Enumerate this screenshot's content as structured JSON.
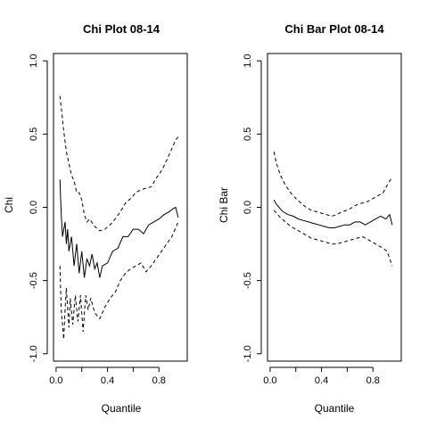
{
  "chart_data": [
    {
      "type": "line",
      "title": "Chi Plot 08-14",
      "xlabel": "Quantile",
      "ylabel": "Chi",
      "xlim": [
        -0.02,
        1.02
      ],
      "ylim": [
        -1.05,
        1.05
      ],
      "xticks": [
        0.0,
        0.2,
        0.4,
        0.6,
        0.8
      ],
      "xtick_labels": [
        "0.0",
        "",
        "0.4",
        "",
        "0.8"
      ],
      "yticks": [
        -1.0,
        -0.5,
        0.0,
        0.5,
        1.0
      ],
      "ytick_labels": [
        "-1.0",
        "-0.5",
        "0.0",
        "0.5",
        "1.0"
      ],
      "grid": false,
      "legend": "none",
      "series": [
        {
          "role": "estimate",
          "dash": "solid",
          "x": [
            0.03,
            0.04,
            0.05,
            0.07,
            0.08,
            0.09,
            0.1,
            0.12,
            0.14,
            0.16,
            0.18,
            0.2,
            0.22,
            0.24,
            0.26,
            0.28,
            0.3,
            0.32,
            0.34,
            0.36,
            0.4,
            0.44,
            0.48,
            0.52,
            0.56,
            0.6,
            0.64,
            0.68,
            0.72,
            0.76,
            0.8,
            0.84,
            0.88,
            0.91,
            0.93,
            0.95
          ],
          "y": [
            0.19,
            -0.05,
            -0.2,
            -0.1,
            -0.25,
            -0.15,
            -0.3,
            -0.2,
            -0.4,
            -0.25,
            -0.45,
            -0.3,
            -0.48,
            -0.35,
            -0.4,
            -0.32,
            -0.42,
            -0.38,
            -0.48,
            -0.4,
            -0.38,
            -0.3,
            -0.28,
            -0.2,
            -0.2,
            -0.15,
            -0.15,
            -0.18,
            -0.12,
            -0.1,
            -0.08,
            -0.05,
            -0.03,
            -0.01,
            0.0,
            -0.07
          ]
        },
        {
          "role": "upper-bound",
          "dash": "dashed",
          "x": [
            0.03,
            0.04,
            0.06,
            0.08,
            0.1,
            0.12,
            0.14,
            0.16,
            0.18,
            0.2,
            0.22,
            0.24,
            0.26,
            0.3,
            0.34,
            0.38,
            0.42,
            0.46,
            0.5,
            0.54,
            0.58,
            0.62,
            0.66,
            0.7,
            0.74,
            0.78,
            0.82,
            0.86,
            0.9,
            0.93,
            0.95
          ],
          "y": [
            0.76,
            0.68,
            0.52,
            0.38,
            0.3,
            0.22,
            0.18,
            0.1,
            0.1,
            0.05,
            -0.05,
            -0.1,
            -0.08,
            -0.13,
            -0.16,
            -0.15,
            -0.12,
            -0.08,
            -0.03,
            0.03,
            0.06,
            0.1,
            0.12,
            0.13,
            0.14,
            0.2,
            0.25,
            0.32,
            0.4,
            0.46,
            0.48
          ]
        },
        {
          "role": "lower-bound",
          "dash": "dashed",
          "x": [
            0.03,
            0.04,
            0.06,
            0.07,
            0.08,
            0.1,
            0.11,
            0.13,
            0.15,
            0.17,
            0.19,
            0.21,
            0.23,
            0.25,
            0.27,
            0.3,
            0.34,
            0.38,
            0.42,
            0.46,
            0.5,
            0.54,
            0.58,
            0.62,
            0.66,
            0.7,
            0.74,
            0.78,
            0.82,
            0.86,
            0.9,
            0.93,
            0.95
          ],
          "y": [
            -0.4,
            -0.7,
            -0.9,
            -0.7,
            -0.55,
            -0.82,
            -0.62,
            -0.8,
            -0.6,
            -0.78,
            -0.6,
            -0.85,
            -0.6,
            -0.7,
            -0.62,
            -0.72,
            -0.76,
            -0.68,
            -0.62,
            -0.58,
            -0.5,
            -0.45,
            -0.42,
            -0.4,
            -0.38,
            -0.44,
            -0.4,
            -0.35,
            -0.3,
            -0.25,
            -0.2,
            -0.14,
            -0.1
          ]
        }
      ]
    },
    {
      "type": "line",
      "title": "Chi Bar Plot 08-14",
      "xlabel": "Quantile",
      "ylabel": "Chi Bar",
      "xlim": [
        -0.02,
        1.02
      ],
      "ylim": [
        -1.05,
        1.05
      ],
      "xticks": [
        0.0,
        0.2,
        0.4,
        0.6,
        0.8
      ],
      "xtick_labels": [
        "0.0",
        "",
        "0.4",
        "",
        "0.8"
      ],
      "yticks": [
        -1.0,
        -0.5,
        0.0,
        0.5,
        1.0
      ],
      "ytick_labels": [
        "-1.0",
        "-0.5",
        "0.0",
        "0.5",
        "1.0"
      ],
      "grid": false,
      "legend": "none",
      "series": [
        {
          "role": "estimate",
          "dash": "solid",
          "x": [
            0.03,
            0.05,
            0.07,
            0.1,
            0.14,
            0.18,
            0.22,
            0.26,
            0.3,
            0.34,
            0.38,
            0.42,
            0.46,
            0.5,
            0.54,
            0.58,
            0.62,
            0.66,
            0.7,
            0.74,
            0.78,
            0.82,
            0.86,
            0.9,
            0.93,
            0.95
          ],
          "y": [
            0.05,
            0.02,
            0.0,
            -0.03,
            -0.05,
            -0.06,
            -0.08,
            -0.09,
            -0.1,
            -0.11,
            -0.12,
            -0.13,
            -0.14,
            -0.14,
            -0.13,
            -0.12,
            -0.12,
            -0.1,
            -0.1,
            -0.12,
            -0.1,
            -0.08,
            -0.06,
            -0.08,
            -0.05,
            -0.12
          ]
        },
        {
          "role": "upper-bound",
          "dash": "dashed",
          "x": [
            0.03,
            0.05,
            0.08,
            0.12,
            0.16,
            0.2,
            0.24,
            0.28,
            0.32,
            0.36,
            0.4,
            0.44,
            0.48,
            0.52,
            0.56,
            0.6,
            0.64,
            0.68,
            0.72,
            0.76,
            0.8,
            0.84,
            0.88,
            0.91,
            0.93,
            0.95
          ],
          "y": [
            0.38,
            0.3,
            0.22,
            0.15,
            0.1,
            0.06,
            0.03,
            0.0,
            -0.02,
            -0.03,
            -0.04,
            -0.05,
            -0.06,
            -0.05,
            -0.03,
            -0.02,
            0.0,
            0.02,
            0.03,
            0.04,
            0.06,
            0.08,
            0.1,
            0.15,
            0.18,
            0.2
          ]
        },
        {
          "role": "lower-bound",
          "dash": "dashed",
          "x": [
            0.03,
            0.05,
            0.08,
            0.12,
            0.16,
            0.2,
            0.24,
            0.28,
            0.32,
            0.36,
            0.4,
            0.44,
            0.48,
            0.52,
            0.56,
            0.6,
            0.64,
            0.68,
            0.72,
            0.76,
            0.8,
            0.84,
            0.88,
            0.91,
            0.93,
            0.95
          ],
          "y": [
            -0.02,
            -0.04,
            -0.07,
            -0.1,
            -0.13,
            -0.15,
            -0.17,
            -0.19,
            -0.21,
            -0.22,
            -0.23,
            -0.24,
            -0.25,
            -0.25,
            -0.24,
            -0.23,
            -0.22,
            -0.21,
            -0.2,
            -0.22,
            -0.24,
            -0.26,
            -0.28,
            -0.3,
            -0.35,
            -0.4
          ]
        }
      ]
    }
  ]
}
